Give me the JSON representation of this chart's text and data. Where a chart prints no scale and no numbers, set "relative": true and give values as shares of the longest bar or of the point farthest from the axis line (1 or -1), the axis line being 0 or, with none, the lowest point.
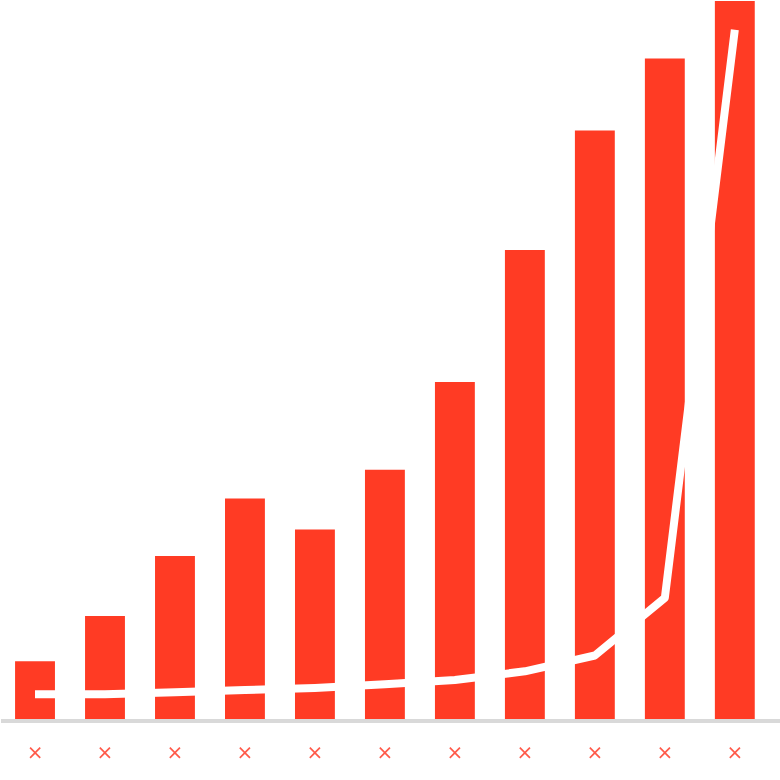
{
  "chart_data": {
    "type": "bar",
    "relative": true,
    "categories": [
      "×",
      "×",
      "×",
      "×",
      "×",
      "×",
      "×",
      "×",
      "×",
      "×",
      "×"
    ],
    "series": [
      {
        "color": "#ff3b24",
        "values": [
          0.083,
          0.146,
          0.229,
          0.309,
          0.266,
          0.349,
          0.471,
          0.654,
          0.82,
          0.92,
          1.0
        ]
      },
      {
        "type": "line",
        "color": "#ffffff",
        "values": [
          0.037,
          0.037,
          0.04,
          0.043,
          0.046,
          0.051,
          0.057,
          0.069,
          0.091,
          0.171,
          0.96
        ]
      }
    ]
  }
}
